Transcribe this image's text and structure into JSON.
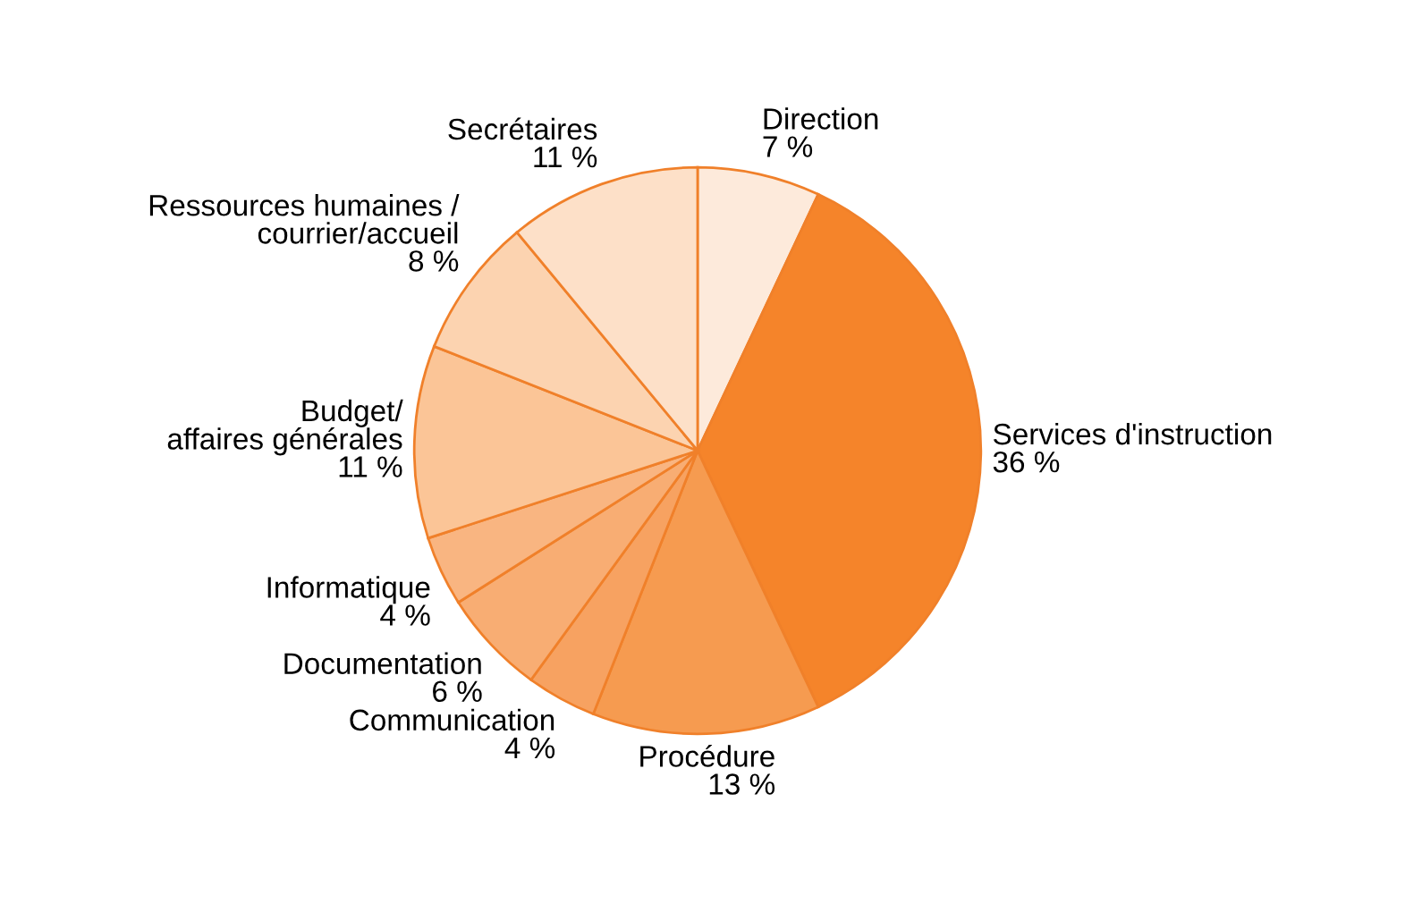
{
  "chart_data": {
    "type": "pie",
    "categories": [
      "Direction",
      "Services d'instruction",
      "Procédure",
      "Communication",
      "Documentation",
      "Informatique",
      "Budget/\naffaires générales",
      "Ressources humaines /\ncourrier/accueil",
      "Secrétaires"
    ],
    "values": [
      7,
      36,
      13,
      4,
      6,
      4,
      11,
      8,
      11
    ],
    "value_labels": [
      "7 %",
      "36 %",
      "13 %",
      "4 %",
      "6 %",
      "4 %",
      "11 %",
      "8 %",
      "11 %"
    ],
    "colors": [
      "#fdeadb",
      "#f5842a",
      "#f69b50",
      "#f7a261",
      "#f8ad73",
      "#f9b581",
      "#fbc597",
      "#fcd3b0",
      "#fde0c8"
    ]
  }
}
